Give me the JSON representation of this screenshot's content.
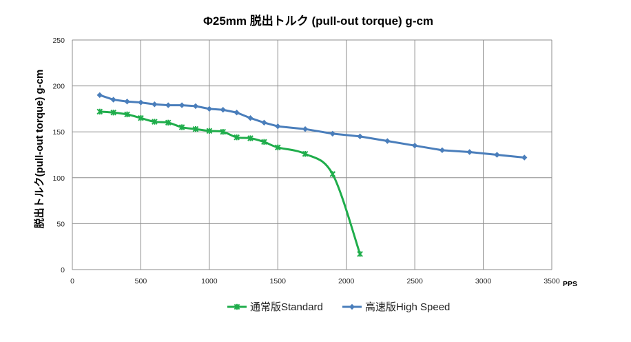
{
  "chart_data": {
    "type": "line",
    "title": "Φ25mm 脱出トルク (pull-out torque) g-cm",
    "ylabel": "脱出トルク(pull-out torque) g-cm",
    "xlabel": "",
    "x_unit": "PPS",
    "xlim": [
      0,
      3500
    ],
    "ylim": [
      0,
      250
    ],
    "x_ticks": [
      0,
      500,
      1000,
      1500,
      2000,
      2500,
      3000,
      3500
    ],
    "y_ticks": [
      0,
      50,
      100,
      150,
      200,
      250
    ],
    "grid": true,
    "legend_position": "bottom",
    "series": [
      {
        "name": "通常版Standard",
        "color": "#1fad4b",
        "marker": "asterisk",
        "smooth": true,
        "x": [
          200,
          300,
          400,
          500,
          600,
          700,
          800,
          900,
          1000,
          1100,
          1200,
          1300,
          1400,
          1500,
          1700,
          1900,
          2100
        ],
        "y": [
          172,
          171,
          169,
          165,
          161,
          160,
          155,
          153,
          151,
          150,
          144,
          143,
          139,
          133,
          126,
          104,
          17
        ]
      },
      {
        "name": "高速版High Speed",
        "color": "#4a7ebb",
        "marker": "diamond",
        "smooth": false,
        "x": [
          200,
          300,
          400,
          500,
          600,
          700,
          800,
          900,
          1000,
          1100,
          1200,
          1300,
          1400,
          1500,
          1700,
          1900,
          2100,
          2300,
          2500,
          2700,
          2900,
          3100,
          3300
        ],
        "y": [
          190,
          185,
          183,
          182,
          180,
          179,
          179,
          178,
          175,
          174,
          171,
          165,
          160,
          156,
          153,
          148,
          145,
          140,
          135,
          130,
          128,
          125,
          122
        ]
      }
    ]
  }
}
